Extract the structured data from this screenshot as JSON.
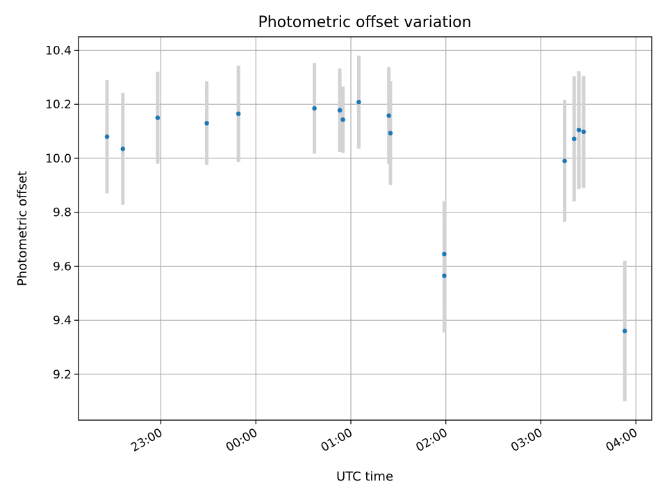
{
  "chart_data": {
    "type": "scatter",
    "title": "Photometric offset variation",
    "xlabel": "UTC time",
    "ylabel": "Photometric offset",
    "x_axis": "time",
    "xlim": [
      "22:08",
      "04:10"
    ],
    "ylim": [
      9.03,
      10.45
    ],
    "x_ticks": [
      "23:00",
      "00:00",
      "01:00",
      "02:00",
      "03:00",
      "04:00"
    ],
    "y_ticks": [
      9.2,
      9.4,
      9.6,
      9.8,
      10.0,
      10.2,
      10.4
    ],
    "grid": true,
    "point_color": "#1f77b4",
    "errorbar_color": "#d3d3d3",
    "points": [
      {
        "x": "22:26",
        "y": 10.08,
        "err": 0.21
      },
      {
        "x": "22:36",
        "y": 10.035,
        "err": 0.207
      },
      {
        "x": "22:58",
        "y": 10.15,
        "err": 0.17
      },
      {
        "x": "23:29",
        "y": 10.13,
        "err": 0.155
      },
      {
        "x": "23:49",
        "y": 10.165,
        "err": 0.178
      },
      {
        "x": "00:37",
        "y": 10.185,
        "err": 0.168
      },
      {
        "x": "00:53",
        "y": 10.178,
        "err": 0.155
      },
      {
        "x": "00:55",
        "y": 10.143,
        "err": 0.123
      },
      {
        "x": "01:05",
        "y": 10.208,
        "err": 0.172
      },
      {
        "x": "01:24",
        "y": 10.158,
        "err": 0.18
      },
      {
        "x": "01:25",
        "y": 10.093,
        "err": 0.192
      },
      {
        "x": "01:59",
        "y": 9.565,
        "err": 0.21
      },
      {
        "x": "01:59",
        "y": 9.645,
        "err": 0.196
      },
      {
        "x": "03:15",
        "y": 9.99,
        "err": 0.226
      },
      {
        "x": "03:21",
        "y": 10.072,
        "err": 0.232
      },
      {
        "x": "03:24",
        "y": 10.105,
        "err": 0.218
      },
      {
        "x": "03:27",
        "y": 10.098,
        "err": 0.208
      },
      {
        "x": "03:53",
        "y": 9.36,
        "err": 0.26
      }
    ]
  }
}
